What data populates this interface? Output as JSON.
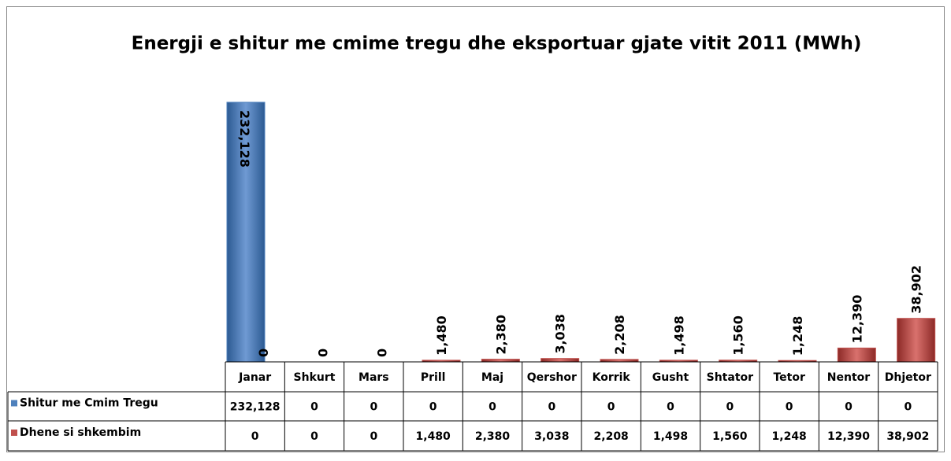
{
  "chart_data": {
    "type": "bar",
    "title": "Energji e shitur me cmime tregu dhe eksportuar  gjate vitit 2011 (MWh)",
    "categories": [
      "Janar",
      "Shkurt",
      "Mars",
      "Prill",
      "Maj",
      "Qershor",
      "Korrik",
      "Gusht",
      "Shtator",
      "Tetor",
      "Nentor",
      "Dhjetor"
    ],
    "series": [
      {
        "name": "Shitur me Cmim Tregu",
        "color": "#4f81bd",
        "values": [
          232128,
          0,
          0,
          0,
          0,
          0,
          0,
          0,
          0,
          0,
          0,
          0
        ],
        "value_labels": [
          "232,128",
          "0",
          "0",
          "0",
          "0",
          "0",
          "0",
          "0",
          "0",
          "0",
          "0",
          "0"
        ]
      },
      {
        "name": "Dhene si shkembim",
        "color": "#c0504d",
        "values": [
          0,
          0,
          0,
          1480,
          2380,
          3038,
          2208,
          1498,
          1560,
          1248,
          12390,
          38902
        ],
        "value_labels": [
          "0",
          "0",
          "0",
          "1,480",
          "2,380",
          "3,038",
          "2,208",
          "1,498",
          "1,560",
          "1,248",
          "12,390",
          "38,902"
        ]
      }
    ],
    "data_table": true
  }
}
